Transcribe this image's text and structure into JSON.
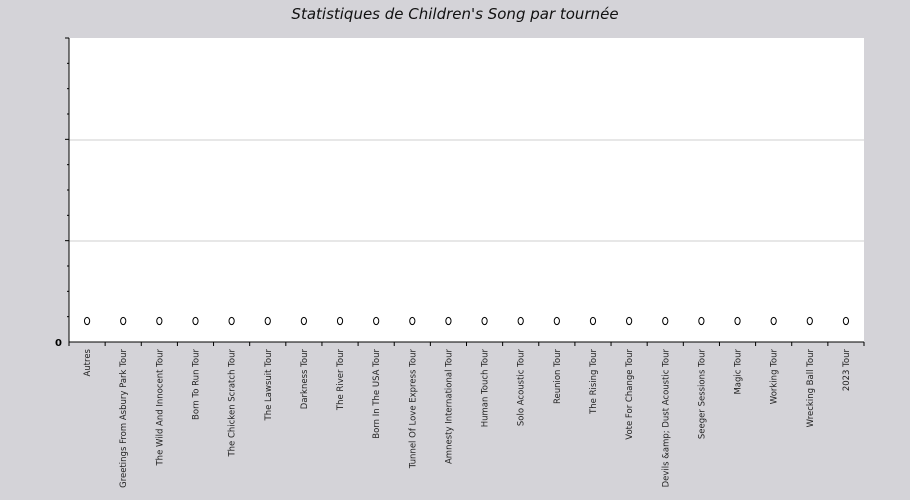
{
  "chart_data": {
    "type": "scatter",
    "title": "Statistiques de Children's Song par tournée",
    "xlabel": "",
    "ylabel": "",
    "y_tick_label": "0",
    "ylim": [
      0,
      1
    ],
    "grid": true,
    "categories": [
      "Autres",
      "Greetings From Asbury Park Tour",
      "The Wild And Innocent Tour",
      "Born To Run Tour",
      "The Chicken Scratch Tour",
      "The Lawsuit Tour",
      "Darkness Tour",
      "The River Tour",
      "Born In The USA Tour",
      "Tunnel Of Love Express Tour",
      "Amnesty International Tour",
      "Human Touch Tour",
      "Solo Acoustic Tour",
      "Reunion Tour",
      "The Rising Tour",
      "Vote For Change Tour",
      "Devils &amp; Dust Acoustic Tour",
      "Seeger Sessions Tour",
      "Magic Tour",
      "Working Tour",
      "Wrecking Ball Tour",
      "2023 Tour"
    ],
    "values": [
      0,
      0,
      0,
      0,
      0,
      0,
      0,
      0,
      0,
      0,
      0,
      0,
      0,
      0,
      0,
      0,
      0,
      0,
      0,
      0,
      0,
      0
    ]
  }
}
